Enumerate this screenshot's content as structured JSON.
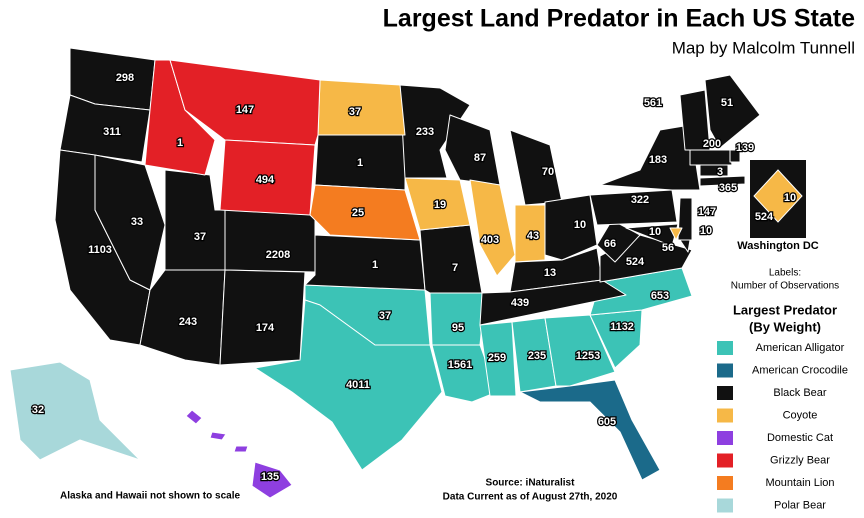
{
  "header": {
    "title": "Largest Land Predator in Each US State",
    "subtitle": "Map by Malcolm Tunnell"
  },
  "labels_note": [
    "Labels:",
    "Number of Observations"
  ],
  "legend": {
    "title": [
      "Largest Predator",
      "(By Weight)"
    ],
    "items": [
      {
        "name": "American Alligator",
        "color": "#3cc3b6",
        "counts": [
          37,
          4011,
          95,
          1561,
          259,
          235,
          1253,
          1132,
          653
        ]
      },
      {
        "name": "American Crocodile",
        "color": "#1b6a8a",
        "counts": [
          605
        ]
      },
      {
        "name": "Black Bear",
        "color": "#111111",
        "counts": [
          298,
          311,
          1103,
          33,
          37,
          2208,
          243,
          174,
          1,
          1,
          233,
          7,
          87,
          70,
          10,
          13,
          439,
          524,
          66,
          322,
          183,
          10,
          147,
          561,
          51,
          200,
          139,
          3,
          365,
          56
        ]
      },
      {
        "name": "Coyote",
        "color": "#f6b847",
        "counts": [
          37,
          19,
          403,
          43,
          10
        ]
      },
      {
        "name": "Domestic Cat",
        "color": "#8e3fe0",
        "counts": [
          135
        ]
      },
      {
        "name": "Grizzly Bear",
        "color": "#e32026",
        "counts": [
          1,
          147,
          494
        ]
      },
      {
        "name": "Mountain Lion",
        "color": "#f47c20",
        "counts": [
          25
        ]
      },
      {
        "name": "Polar Bear",
        "color": "#a8d8da",
        "counts": [
          32
        ]
      }
    ]
  },
  "inset": {
    "title": "Washington DC",
    "counts": [
      10,
      524
    ]
  },
  "scale_note": "Alaska and Hawaii not shown to scale",
  "source": [
    "Source: iNaturalist",
    "Data Current as of August 27th, 2020"
  ]
}
